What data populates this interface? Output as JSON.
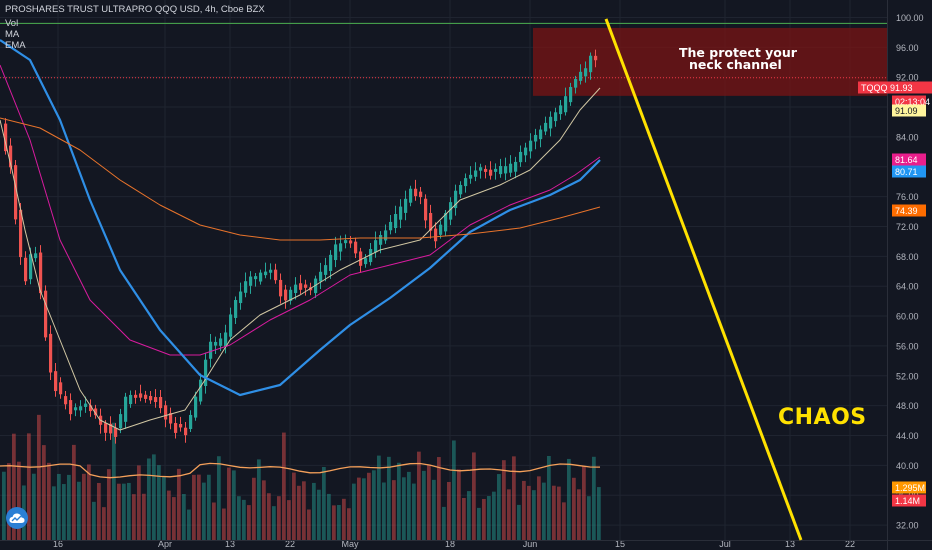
{
  "header": {
    "title": "PROSHARES TRUST ULTRAPRO QQQ USD, 4h, Cboe BZX",
    "indicators": [
      "Vol",
      "MA",
      "EMA"
    ]
  },
  "annotations": {
    "channel_label_line1": "The protect your",
    "channel_label_line2": "neck channel",
    "chaos_label": "CHAOS"
  },
  "colors": {
    "background": "#131722",
    "grid": "#1f2430",
    "up_candle": "#26a69a",
    "down_candle": "#ef5350",
    "channel_fill": "#7a1414",
    "projection_line": "#ffe100",
    "resistance_line": "#4caf50",
    "ma_fast": "#d1c7a3",
    "ma_pink": "#d81b9f",
    "ma_blue": "#2f8fe6",
    "ma_orange": "#e8732b"
  },
  "chart_data": {
    "type": "line",
    "title": "PROSHARES TRUST ULTRAPRO QQQ USD, 4h, Cboe BZX",
    "y_axis": {
      "ticks": [
        32.0,
        36.0,
        40.0,
        44.0,
        48.0,
        52.0,
        56.0,
        60.0,
        64.0,
        68.0,
        72.0,
        76.0,
        80.0,
        84.0,
        88.0,
        92.0,
        96.0,
        100.0
      ],
      "range": [
        30,
        101
      ]
    },
    "x_axis": {
      "ticks": [
        "16",
        "Apr",
        "13",
        "22",
        "May",
        "18",
        "Jun",
        "15",
        "Jul",
        "13",
        "22"
      ]
    },
    "price_labels": [
      {
        "label": "TQQQ",
        "value": "91.93",
        "color": "#f23645"
      },
      {
        "label": "",
        "value": "02:13:04",
        "color": "#f23645"
      },
      {
        "label": "",
        "value": "91.09",
        "color": "#fff59d"
      },
      {
        "label": "",
        "value": "81.64",
        "color": "#e91e8c"
      },
      {
        "label": "",
        "value": "80.71",
        "color": "#2196f3"
      },
      {
        "label": "",
        "value": "74.39",
        "color": "#ff6d00"
      },
      {
        "label": "",
        "value": "1.295M",
        "color": "#ff9800"
      },
      {
        "label": "",
        "value": "1.14M",
        "color": "#f23645"
      }
    ],
    "resistance_level": 99.2,
    "current_price_level": 91.93,
    "channel": {
      "price_top": 98.6,
      "price_bottom": 89.5
    },
    "projection_line": {
      "from_price": 99.8,
      "to_price": 30.0,
      "direction": "down"
    },
    "series": [
      {
        "key": "ma_fast"
      },
      {
        "key": "ma_pink"
      },
      {
        "key": "ma_blue"
      },
      {
        "key": "ma_orange"
      }
    ],
    "grid": true
  }
}
